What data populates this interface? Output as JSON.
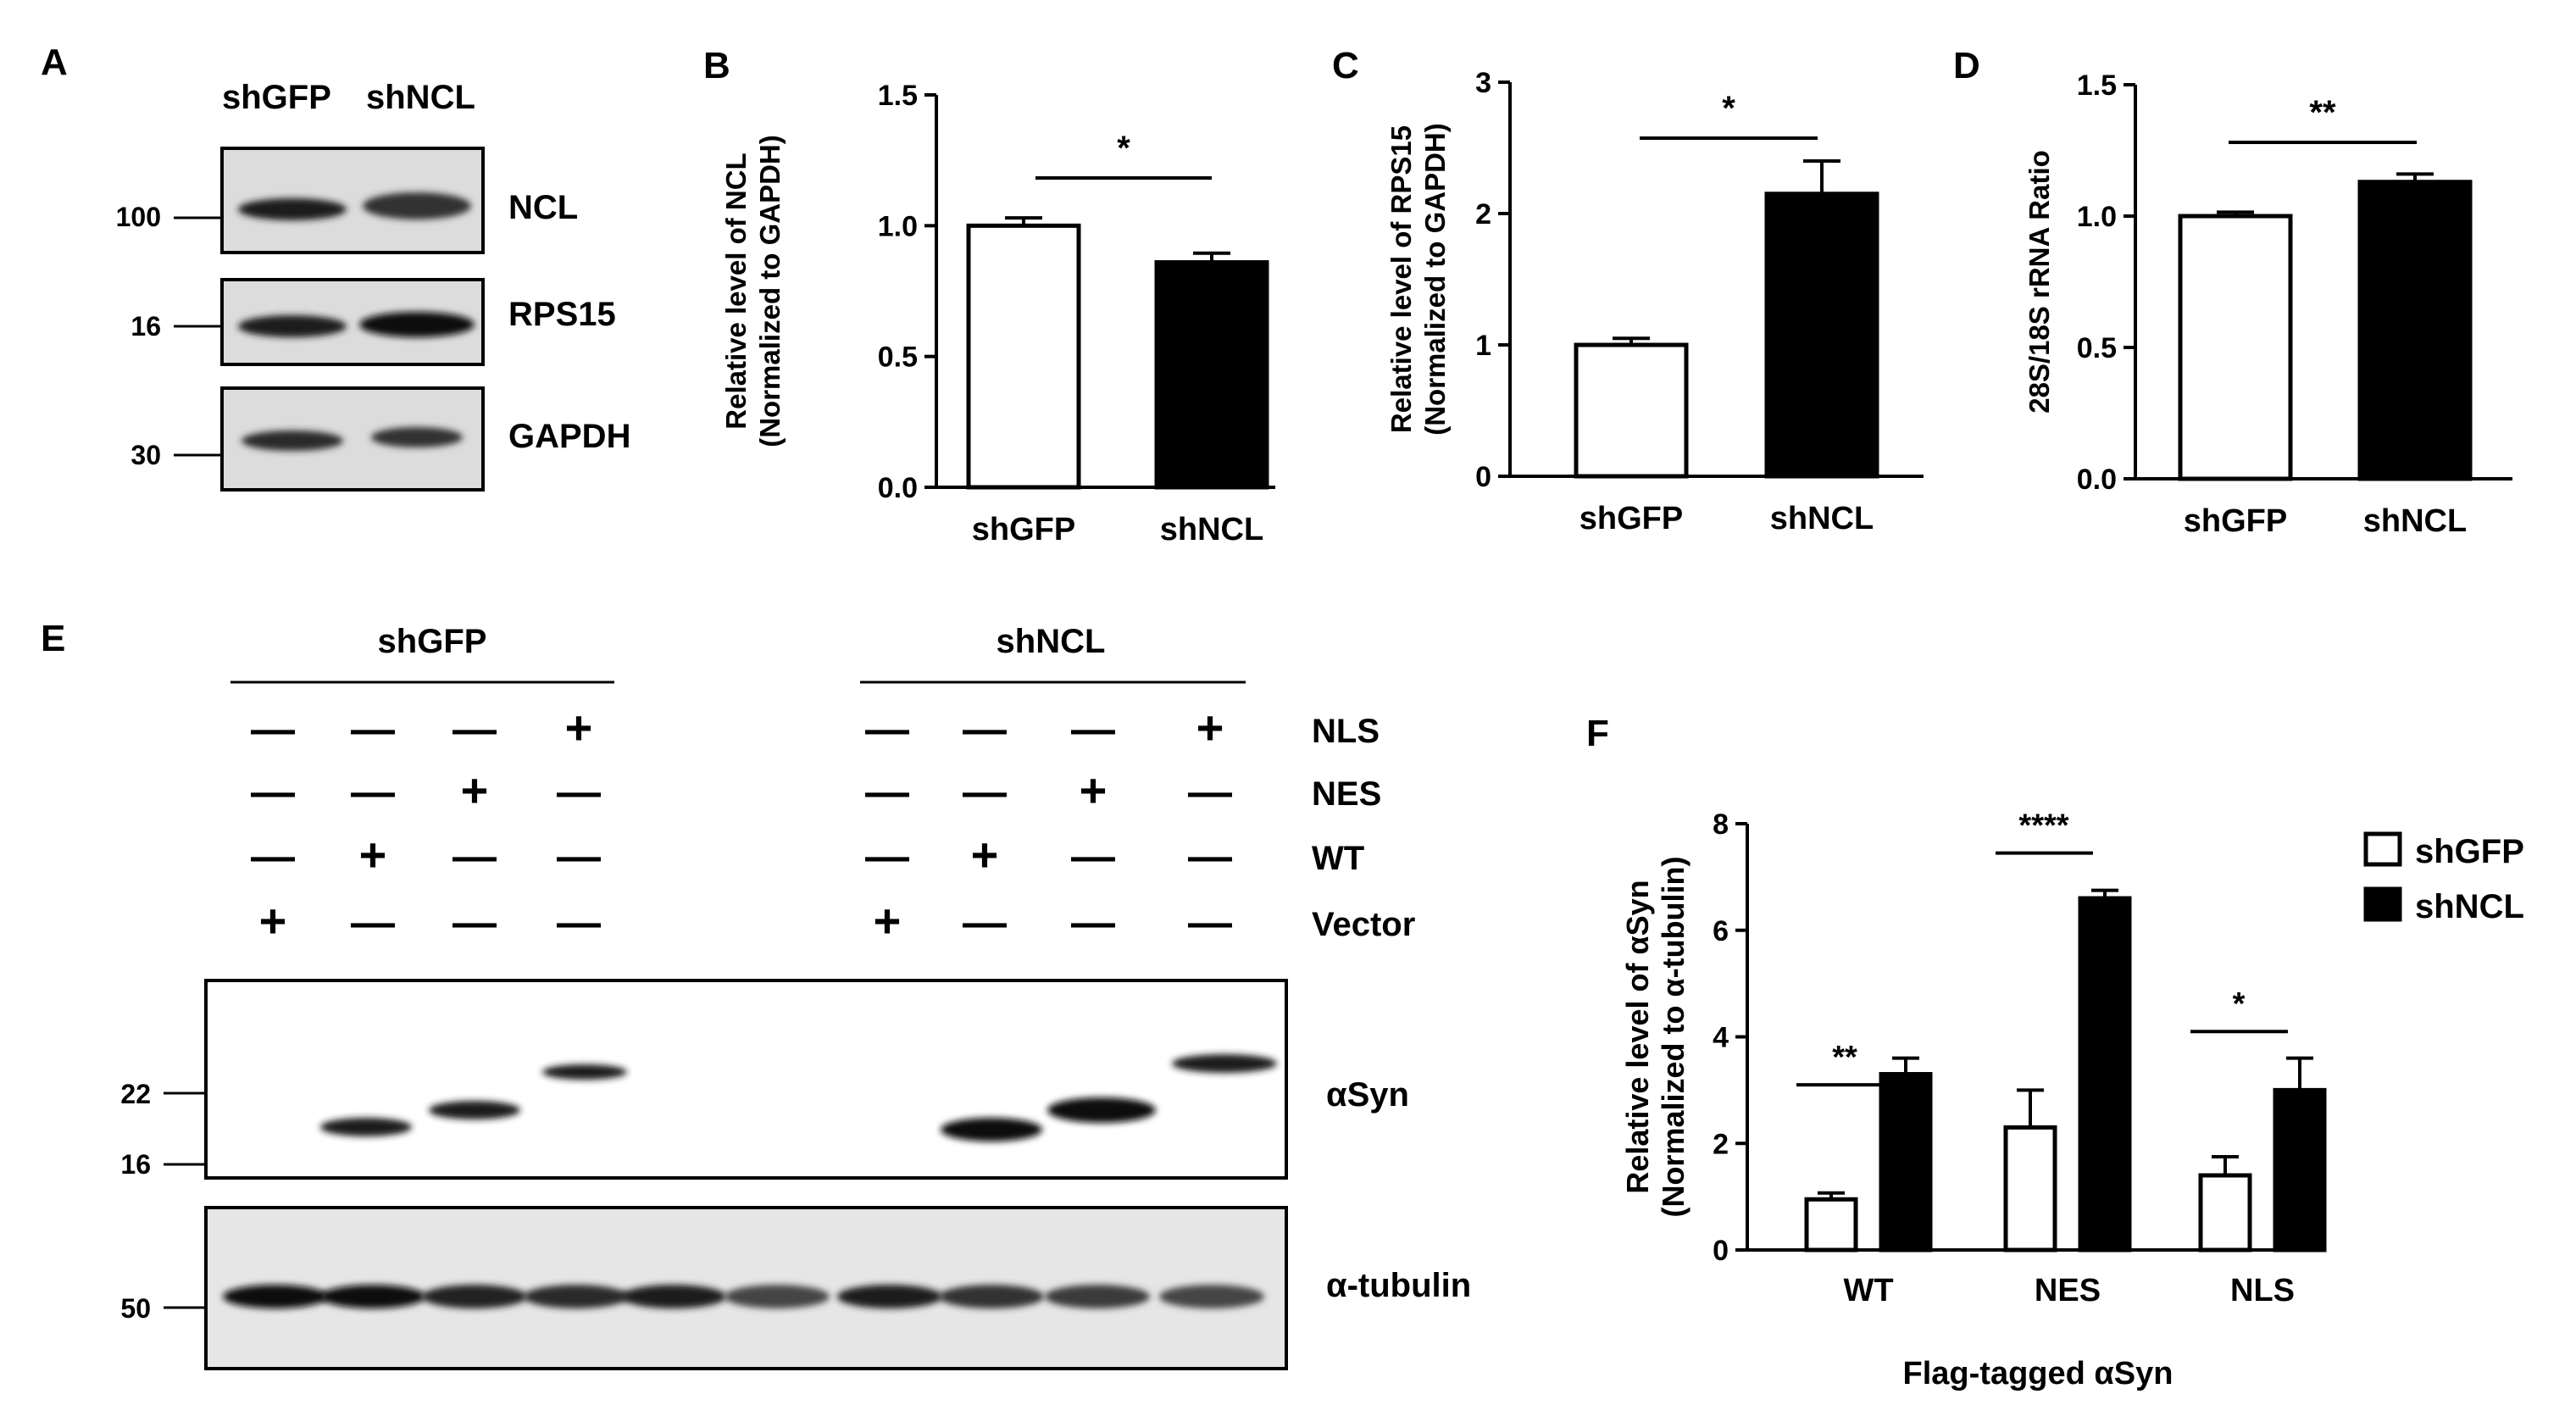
{
  "panel_A": {
    "letter": "A",
    "lanes": [
      "shGFP",
      "shNCL"
    ],
    "markers": [
      "100",
      "16",
      "30"
    ],
    "proteins": [
      "NCL",
      "RPS15",
      "GAPDH"
    ]
  },
  "panel_E": {
    "letter": "E",
    "groups": [
      "shGFP",
      "shNCL"
    ],
    "rows": [
      {
        "label": "NLS",
        "signs": [
          "—",
          "—",
          "—",
          "+",
          "—",
          "—",
          "—",
          "+"
        ]
      },
      {
        "label": "NES",
        "signs": [
          "—",
          "—",
          "+",
          "—",
          "—",
          "—",
          "+",
          "—"
        ]
      },
      {
        "label": "WT",
        "signs": [
          "—",
          "+",
          "—",
          "—",
          "—",
          "+",
          "—",
          "—"
        ]
      },
      {
        "label": "Vector",
        "signs": [
          "+",
          "—",
          "—",
          "—",
          "+",
          "—",
          "—",
          "—"
        ]
      }
    ],
    "syn_markers": [
      "22",
      "16"
    ],
    "tub_markers": [
      "50"
    ],
    "proteins": [
      "αSyn",
      "α-tubulin"
    ]
  },
  "chart_data": [
    {
      "panel": "B",
      "type": "bar",
      "categories": [
        "shGFP",
        "shNCL"
      ],
      "values": [
        1.0,
        0.86
      ],
      "errors": [
        0.03,
        0.035
      ],
      "colors": [
        "#ffffff",
        "#000000"
      ],
      "ylabel_lines": [
        "Relative level of NCL",
        "(Normalized to GAPDH)"
      ],
      "ylim": [
        0,
        1.5
      ],
      "yticks": [
        "0.0",
        "0.5",
        "1.0",
        "1.5"
      ],
      "significance": "*"
    },
    {
      "panel": "C",
      "type": "bar",
      "categories": [
        "shGFP",
        "shNCL"
      ],
      "values": [
        1.0,
        2.15
      ],
      "errors": [
        0.05,
        0.25
      ],
      "colors": [
        "#ffffff",
        "#000000"
      ],
      "ylabel_lines": [
        "Relative level of RPS15",
        "(Normalized to GAPDH)"
      ],
      "ylim": [
        0,
        3
      ],
      "yticks": [
        "0",
        "1",
        "2",
        "3"
      ],
      "significance": "*"
    },
    {
      "panel": "D",
      "type": "bar",
      "categories": [
        "shGFP",
        "shNCL"
      ],
      "values": [
        1.0,
        1.13
      ],
      "errors": [
        0.015,
        0.03
      ],
      "colors": [
        "#ffffff",
        "#000000"
      ],
      "ylabel_lines": [
        "28S/18S rRNA Ratio"
      ],
      "ylim": [
        0,
        1.5
      ],
      "yticks": [
        "0.0",
        "0.5",
        "1.0",
        "1.5"
      ],
      "significance": "**"
    },
    {
      "panel": "F",
      "type": "bar",
      "categories": [
        "WT",
        "NES",
        "NLS"
      ],
      "series": [
        {
          "name": "shGFP",
          "color": "#ffffff",
          "values": [
            0.95,
            2.3,
            1.4
          ],
          "errors": [
            0.12,
            0.7,
            0.35
          ]
        },
        {
          "name": "shNCL",
          "color": "#000000",
          "values": [
            3.3,
            6.6,
            3.0
          ],
          "errors": [
            0.3,
            0.15,
            0.6
          ]
        }
      ],
      "ylabel_lines": [
        "Relative level of αSyn",
        "(Normalized to α-tubulin)"
      ],
      "xlabel": "Flag-tagged αSyn",
      "ylim": [
        0,
        8
      ],
      "yticks": [
        "0",
        "2",
        "4",
        "6",
        "8"
      ],
      "significance": [
        "**",
        "****",
        "*"
      ],
      "legend": "top-right"
    }
  ]
}
